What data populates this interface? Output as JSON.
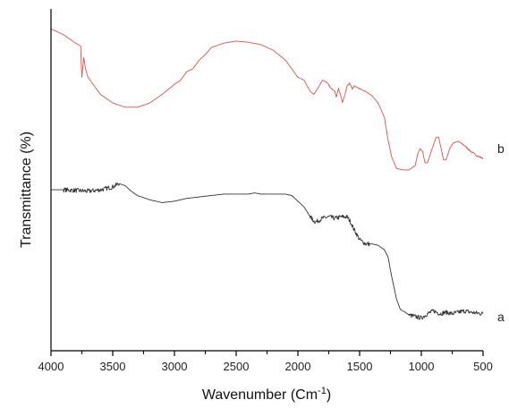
{
  "chart_data": {
    "type": "line",
    "xlabel": "Wavenumber (Cm",
    "xlabel_sup": "-1",
    "xlabel_suffix": ")",
    "ylabel": "Transmittance (%)",
    "xlim": [
      4000,
      500
    ],
    "x_reversed": true,
    "yticks_shown": false,
    "grid": false,
    "xticks": [
      4000,
      3500,
      3000,
      2500,
      2000,
      1500,
      1000,
      500
    ],
    "xtick_labels": [
      "4000",
      "3500",
      "3000",
      "2500",
      "2000",
      "1500",
      "1000",
      "500"
    ],
    "series": [
      {
        "name": "b",
        "color": "#d9534f",
        "points": [
          [
            4000,
            93
          ],
          [
            3900,
            91
          ],
          [
            3800,
            88
          ],
          [
            3760,
            87
          ],
          [
            3750,
            76
          ],
          [
            3735,
            83
          ],
          [
            3720,
            79
          ],
          [
            3700,
            76
          ],
          [
            3600,
            70
          ],
          [
            3500,
            67
          ],
          [
            3400,
            65.5
          ],
          [
            3300,
            65.5
          ],
          [
            3200,
            67
          ],
          [
            3100,
            70
          ],
          [
            3000,
            73.5
          ],
          [
            2950,
            75
          ],
          [
            2900,
            78
          ],
          [
            2850,
            79
          ],
          [
            2800,
            82
          ],
          [
            2750,
            84
          ],
          [
            2700,
            86.5
          ],
          [
            2600,
            88
          ],
          [
            2500,
            88.7
          ],
          [
            2400,
            88.3
          ],
          [
            2300,
            87.5
          ],
          [
            2200,
            85.5
          ],
          [
            2100,
            82
          ],
          [
            2050,
            79
          ],
          [
            2000,
            76
          ],
          [
            1950,
            75
          ],
          [
            1900,
            71
          ],
          [
            1870,
            70
          ],
          [
            1840,
            72
          ],
          [
            1800,
            75
          ],
          [
            1760,
            74
          ],
          [
            1730,
            72
          ],
          [
            1700,
            71
          ],
          [
            1690,
            69
          ],
          [
            1670,
            72
          ],
          [
            1650,
            69
          ],
          [
            1640,
            67
          ],
          [
            1620,
            70
          ],
          [
            1600,
            73
          ],
          [
            1580,
            74
          ],
          [
            1560,
            72
          ],
          [
            1540,
            73
          ],
          [
            1500,
            72
          ],
          [
            1450,
            71
          ],
          [
            1400,
            69.5
          ],
          [
            1350,
            67
          ],
          [
            1300,
            62
          ],
          [
            1270,
            54
          ],
          [
            1240,
            48
          ],
          [
            1200,
            44
          ],
          [
            1150,
            43.5
          ],
          [
            1100,
            43.5
          ],
          [
            1050,
            45
          ],
          [
            1030,
            49
          ],
          [
            1010,
            51
          ],
          [
            990,
            50
          ],
          [
            970,
            46
          ],
          [
            950,
            46
          ],
          [
            920,
            50
          ],
          [
            880,
            55
          ],
          [
            860,
            55
          ],
          [
            840,
            51
          ],
          [
            820,
            47
          ],
          [
            800,
            47
          ],
          [
            770,
            51
          ],
          [
            740,
            53
          ],
          [
            700,
            53.5
          ],
          [
            650,
            52
          ],
          [
            600,
            50
          ],
          [
            550,
            48.5
          ],
          [
            500,
            47.5
          ]
        ]
      },
      {
        "name": "a",
        "color": "#333333",
        "points": [
          [
            4000,
            36.5
          ],
          [
            3900,
            36.5
          ],
          [
            3800,
            36.3
          ],
          [
            3700,
            36
          ],
          [
            3600,
            36.5
          ],
          [
            3500,
            37.5
          ],
          [
            3450,
            38.7
          ],
          [
            3400,
            38
          ],
          [
            3350,
            36
          ],
          [
            3300,
            34.5
          ],
          [
            3200,
            33
          ],
          [
            3100,
            32
          ],
          [
            3000,
            32.5
          ],
          [
            2900,
            33.5
          ],
          [
            2800,
            34
          ],
          [
            2700,
            34.5
          ],
          [
            2600,
            35
          ],
          [
            2500,
            35
          ],
          [
            2400,
            35
          ],
          [
            2350,
            35.4
          ],
          [
            2300,
            35
          ],
          [
            2200,
            35
          ],
          [
            2100,
            35
          ],
          [
            2050,
            34.5
          ],
          [
            2000,
            32.5
          ],
          [
            1950,
            30.5
          ],
          [
            1900,
            27
          ],
          [
            1870,
            25.5
          ],
          [
            1850,
            25.3
          ],
          [
            1800,
            26.5
          ],
          [
            1750,
            27
          ],
          [
            1700,
            26.5
          ],
          [
            1650,
            27
          ],
          [
            1600,
            27
          ],
          [
            1570,
            25
          ],
          [
            1550,
            23
          ],
          [
            1500,
            19
          ],
          [
            1450,
            17.5
          ],
          [
            1400,
            17.5
          ],
          [
            1350,
            17
          ],
          [
            1300,
            15.5
          ],
          [
            1270,
            13
          ],
          [
            1240,
            6
          ],
          [
            1200,
            -2
          ],
          [
            1170,
            -5.5
          ],
          [
            1130,
            -6.5
          ],
          [
            1100,
            -7.5
          ],
          [
            1050,
            -8
          ],
          [
            1000,
            -8.5
          ],
          [
            950,
            -7
          ],
          [
            900,
            -6
          ],
          [
            850,
            -7
          ],
          [
            800,
            -6.5
          ],
          [
            750,
            -7
          ],
          [
            700,
            -6.5
          ],
          [
            650,
            -6
          ],
          [
            600,
            -6.5
          ],
          [
            550,
            -6.8
          ],
          [
            500,
            -7
          ]
        ]
      }
    ],
    "curve_labels": [
      {
        "series": "b",
        "text": "b",
        "y": 51
      },
      {
        "series": "a",
        "text": "a",
        "y": -8
      }
    ]
  }
}
